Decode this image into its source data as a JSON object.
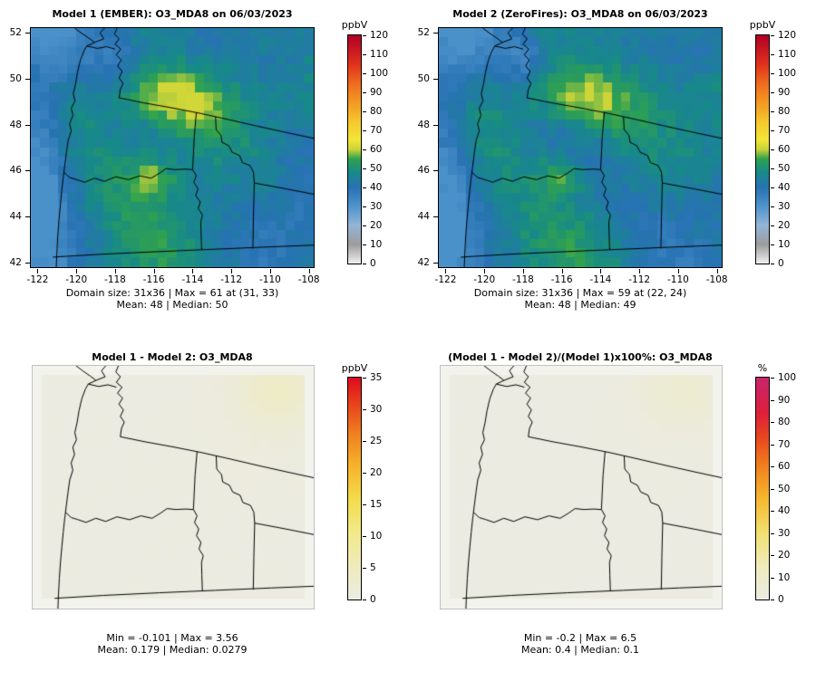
{
  "figure": {
    "background": "#ffffff"
  },
  "panels": [
    {
      "id": "model1",
      "title": "Model 1 (EMBER): O3_MDA8 on 06/03/2023",
      "caption1": "Domain size: 31x36 | Max = 61 at (31, 33)",
      "caption2": "Mean: 48 | Median: 50",
      "field": "conc1",
      "axis": {
        "x": {
          "min": -122.35,
          "max": -107.75,
          "ticks": [
            -122,
            -120,
            -118,
            -116,
            -114,
            -112,
            -110,
            -108
          ]
        },
        "y": {
          "min": 41.8,
          "max": 52.2,
          "ticks": [
            52,
            50,
            48,
            46,
            44,
            42
          ]
        }
      },
      "colorbar": {
        "unit": "ppbV",
        "min": 0,
        "max": 120,
        "ticks": [
          0,
          10,
          20,
          30,
          40,
          50,
          60,
          70,
          80,
          90,
          100,
          110,
          120
        ],
        "stops": [
          [
            0,
            "#EFEFEF"
          ],
          [
            0.083,
            "#9C9C9C"
          ],
          [
            0.167,
            "#93B5D6"
          ],
          [
            0.25,
            "#4F94CC"
          ],
          [
            0.333,
            "#2772B3"
          ],
          [
            0.4,
            "#178A88"
          ],
          [
            0.458,
            "#2FA14F"
          ],
          [
            0.5,
            "#C9D338"
          ],
          [
            0.542,
            "#F2E636"
          ],
          [
            0.625,
            "#F6C62C"
          ],
          [
            0.708,
            "#F39722"
          ],
          [
            0.792,
            "#ED6A1E"
          ],
          [
            0.875,
            "#E0301C"
          ],
          [
            1,
            "#B00026"
          ]
        ]
      }
    },
    {
      "id": "model2",
      "title": "Model 2 (ZeroFires): O3_MDA8 on 06/03/2023",
      "caption1": "Domain size: 31x36 | Max = 59 at (22, 24)",
      "caption2": "Mean: 48 | Median: 49",
      "field": "conc2",
      "axis": {
        "x": {
          "min": -122.35,
          "max": -107.75,
          "ticks": [
            -122,
            -120,
            -118,
            -116,
            -114,
            -112,
            -110,
            -108
          ]
        },
        "y": {
          "min": 41.8,
          "max": 52.2,
          "ticks": [
            52,
            50,
            48,
            46,
            44,
            42
          ]
        }
      },
      "colorbar": {
        "unit": "ppbV",
        "min": 0,
        "max": 120,
        "ticks": [
          0,
          10,
          20,
          30,
          40,
          50,
          60,
          70,
          80,
          90,
          100,
          110,
          120
        ],
        "stops": [
          [
            0,
            "#EFEFEF"
          ],
          [
            0.083,
            "#9C9C9C"
          ],
          [
            0.167,
            "#93B5D6"
          ],
          [
            0.25,
            "#4F94CC"
          ],
          [
            0.333,
            "#2772B3"
          ],
          [
            0.4,
            "#178A88"
          ],
          [
            0.458,
            "#2FA14F"
          ],
          [
            0.5,
            "#C9D338"
          ],
          [
            0.542,
            "#F2E636"
          ],
          [
            0.625,
            "#F6C62C"
          ],
          [
            0.708,
            "#F39722"
          ],
          [
            0.792,
            "#ED6A1E"
          ],
          [
            0.875,
            "#E0301C"
          ],
          [
            1,
            "#B00026"
          ]
        ]
      }
    },
    {
      "id": "diff",
      "title": "Model 1 - Model 2: O3_MDA8",
      "caption1": "Min = -0.101 | Max = 3.56",
      "caption2": "Mean: 0.179 | Median: 0.0279",
      "field": "diff",
      "colorbar": {
        "unit": "ppbV",
        "min": 0,
        "max": 35,
        "ticks": [
          0,
          5,
          10,
          15,
          20,
          25,
          30,
          35
        ],
        "stops": [
          [
            0,
            "#EBEBE3"
          ],
          [
            0.15,
            "#EFEBBC"
          ],
          [
            0.3,
            "#F2E989"
          ],
          [
            0.45,
            "#F4DC4D"
          ],
          [
            0.6,
            "#F6B32B"
          ],
          [
            0.75,
            "#F07E1F"
          ],
          [
            0.88,
            "#E8431C"
          ],
          [
            1,
            "#DE0A1E"
          ]
        ]
      }
    },
    {
      "id": "pctdiff",
      "title": "(Model 1 - Model 2)/(Model 1)x100%: O3_MDA8",
      "caption1": "Min = -0.2 | Max = 6.5",
      "caption2": "Mean: 0.4 | Median: 0.1",
      "field": "pct",
      "colorbar": {
        "unit": "%",
        "min": 0,
        "max": 100,
        "ticks": [
          0,
          10,
          20,
          30,
          40,
          50,
          60,
          70,
          80,
          90,
          100
        ],
        "stops": [
          [
            0,
            "#EBEBE3"
          ],
          [
            0.15,
            "#EFEBBC"
          ],
          [
            0.3,
            "#F2E070"
          ],
          [
            0.45,
            "#F5B92E"
          ],
          [
            0.6,
            "#F0801F"
          ],
          [
            0.72,
            "#E84A1D"
          ],
          [
            0.84,
            "#DE1F3A"
          ],
          [
            1,
            "#C9256E"
          ]
        ]
      }
    }
  ],
  "chart_data": [
    {
      "type": "heatmap",
      "panel": "top-left",
      "title": "Model 1 (EMBER): O3_MDA8 on 06/03/2023",
      "variable": "O3_MDA8",
      "model_label": "Model 1 (EMBER)",
      "date": "06/03/2023",
      "units": "ppbV",
      "domain_size": "31x36",
      "max": 61,
      "max_location": "(31, 33)",
      "mean": 48,
      "median": 50,
      "x_ticks": [
        -122,
        -120,
        -118,
        -116,
        -114,
        -112,
        -110,
        -108
      ],
      "y_ticks": [
        52,
        50,
        48,
        46,
        44,
        42
      ],
      "colorbar_range": [
        0,
        120
      ],
      "colorbar_step": 10,
      "legend_position": "right",
      "grid": false
    },
    {
      "type": "heatmap",
      "panel": "top-right",
      "title": "Model 2 (ZeroFires): O3_MDA8 on 06/03/2023",
      "variable": "O3_MDA8",
      "model_label": "Model 2 (ZeroFires)",
      "date": "06/03/2023",
      "units": "ppbV",
      "domain_size": "31x36",
      "max": 59,
      "max_location": "(22, 24)",
      "mean": 48,
      "median": 49,
      "x_ticks": [
        -122,
        -120,
        -118,
        -116,
        -114,
        -112,
        -110,
        -108
      ],
      "y_ticks": [
        52,
        50,
        48,
        46,
        44,
        42
      ],
      "colorbar_range": [
        0,
        120
      ],
      "colorbar_step": 10,
      "legend_position": "right",
      "grid": false
    },
    {
      "type": "heatmap",
      "panel": "bottom-left",
      "title": "Model 1 - Model 2: O3_MDA8",
      "variable": "O3_MDA8",
      "units": "ppbV",
      "min": -0.101,
      "max": 3.56,
      "mean": 0.179,
      "median": 0.0279,
      "colorbar_range": [
        0,
        35
      ],
      "colorbar_step": 5,
      "legend_position": "right",
      "grid": false
    },
    {
      "type": "heatmap",
      "panel": "bottom-right",
      "title": "(Model 1 - Model 2)/(Model 1)x100%: O3_MDA8",
      "variable": "O3_MDA8",
      "units": "%",
      "min": -0.2,
      "max": 6.5,
      "mean": 0.4,
      "median": 0.1,
      "colorbar_range": [
        0,
        100
      ],
      "colorbar_step": 10,
      "legend_position": "right",
      "grid": false
    }
  ]
}
